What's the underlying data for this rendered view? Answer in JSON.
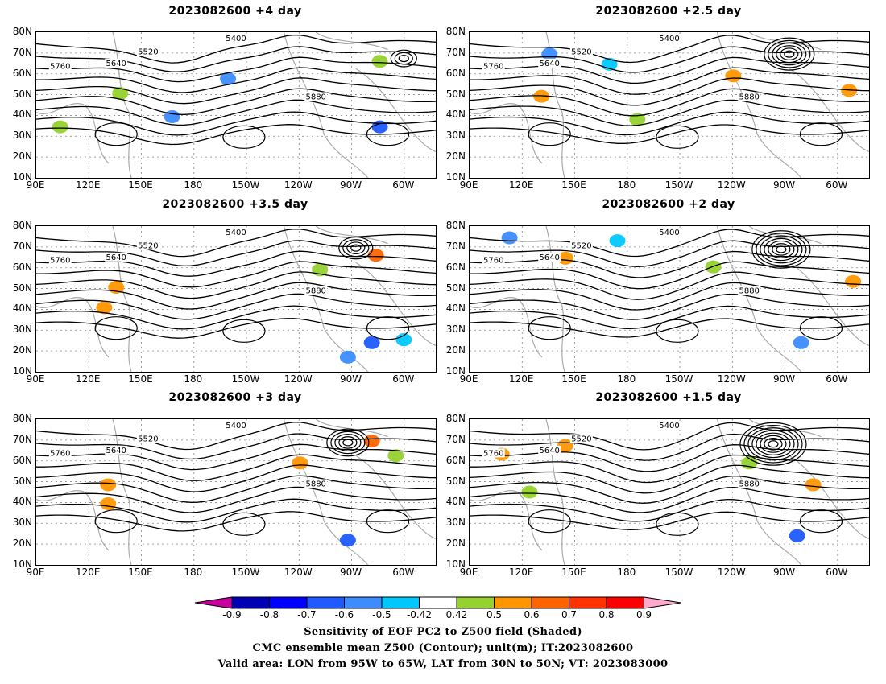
{
  "panels": [
    {
      "title": "2023082600 +4 day"
    },
    {
      "title": "2023082600 +2.5 day"
    },
    {
      "title": "2023082600 +3.5 day"
    },
    {
      "title": "2023082600 +2 day"
    },
    {
      "title": "2023082600 +3 day"
    },
    {
      "title": "2023082600 +1.5 day"
    }
  ],
  "axes": {
    "lat_ticks": [
      "80N",
      "70N",
      "60N",
      "50N",
      "40N",
      "30N",
      "20N",
      "10N"
    ],
    "lon_ticks": [
      "90E",
      "120E",
      "150E",
      "180",
      "150W",
      "120W",
      "90W",
      "60W"
    ]
  },
  "contour_labels": [
    "5400",
    "5520",
    "5640",
    "5760",
    "5880"
  ],
  "colorbar": {
    "labels": [
      "-0.9",
      "-0.8",
      "-0.7",
      "-0.6",
      "-0.5",
      "-0.42",
      "0.42",
      "0.5",
      "0.6",
      "0.7",
      "0.8",
      "0.9"
    ],
    "colors": [
      "#0000b4",
      "#0000ff",
      "#1e5aff",
      "#3c8cff",
      "#00c8ff",
      "#ffffff",
      "#96d22d",
      "#ff9600",
      "#ff6400",
      "#ff3200",
      "#ff0000"
    ],
    "low_extend_color": "#c800a0",
    "high_extend_color": "#ffaacc"
  },
  "footer": {
    "line1": "Sensitivity of EOF PC2 to Z500 field (Shaded)",
    "line2": "CMC ensemble mean Z500 (Contour); unit(m); IT:2023082600",
    "line3": "Valid area: LON from 95W to 65W, LAT from 30N to 50N; VT: 2023083000"
  }
}
